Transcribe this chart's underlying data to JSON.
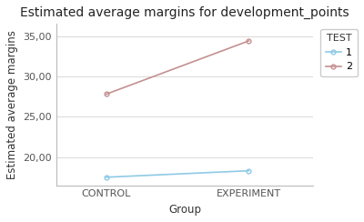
{
  "title": "Estimated average margins for development_points",
  "xlabel": "Group",
  "ylabel": "Estimated average margins",
  "x_categories": [
    "CONTROL",
    "EXPERIMENT"
  ],
  "series": [
    {
      "label": "1",
      "color": "#8ecae6",
      "values": [
        17.5,
        18.3
      ]
    },
    {
      "label": "2",
      "color": "#c49090",
      "values": [
        27.8,
        34.4
      ]
    }
  ],
  "ylim": [
    16.5,
    36.5
  ],
  "yticks": [
    20.0,
    25.0,
    30.0,
    35.0
  ],
  "ytick_labels": [
    "20,00",
    "25,00",
    "30,00",
    "35,00"
  ],
  "ytop_label": "35,00",
  "legend_title": "TEST",
  "background_color": "#ffffff",
  "plot_bg_color": "#ffffff",
  "grid_color": "#dddddd",
  "title_fontsize": 10,
  "axis_label_fontsize": 8.5,
  "tick_fontsize": 8,
  "legend_fontsize": 8
}
